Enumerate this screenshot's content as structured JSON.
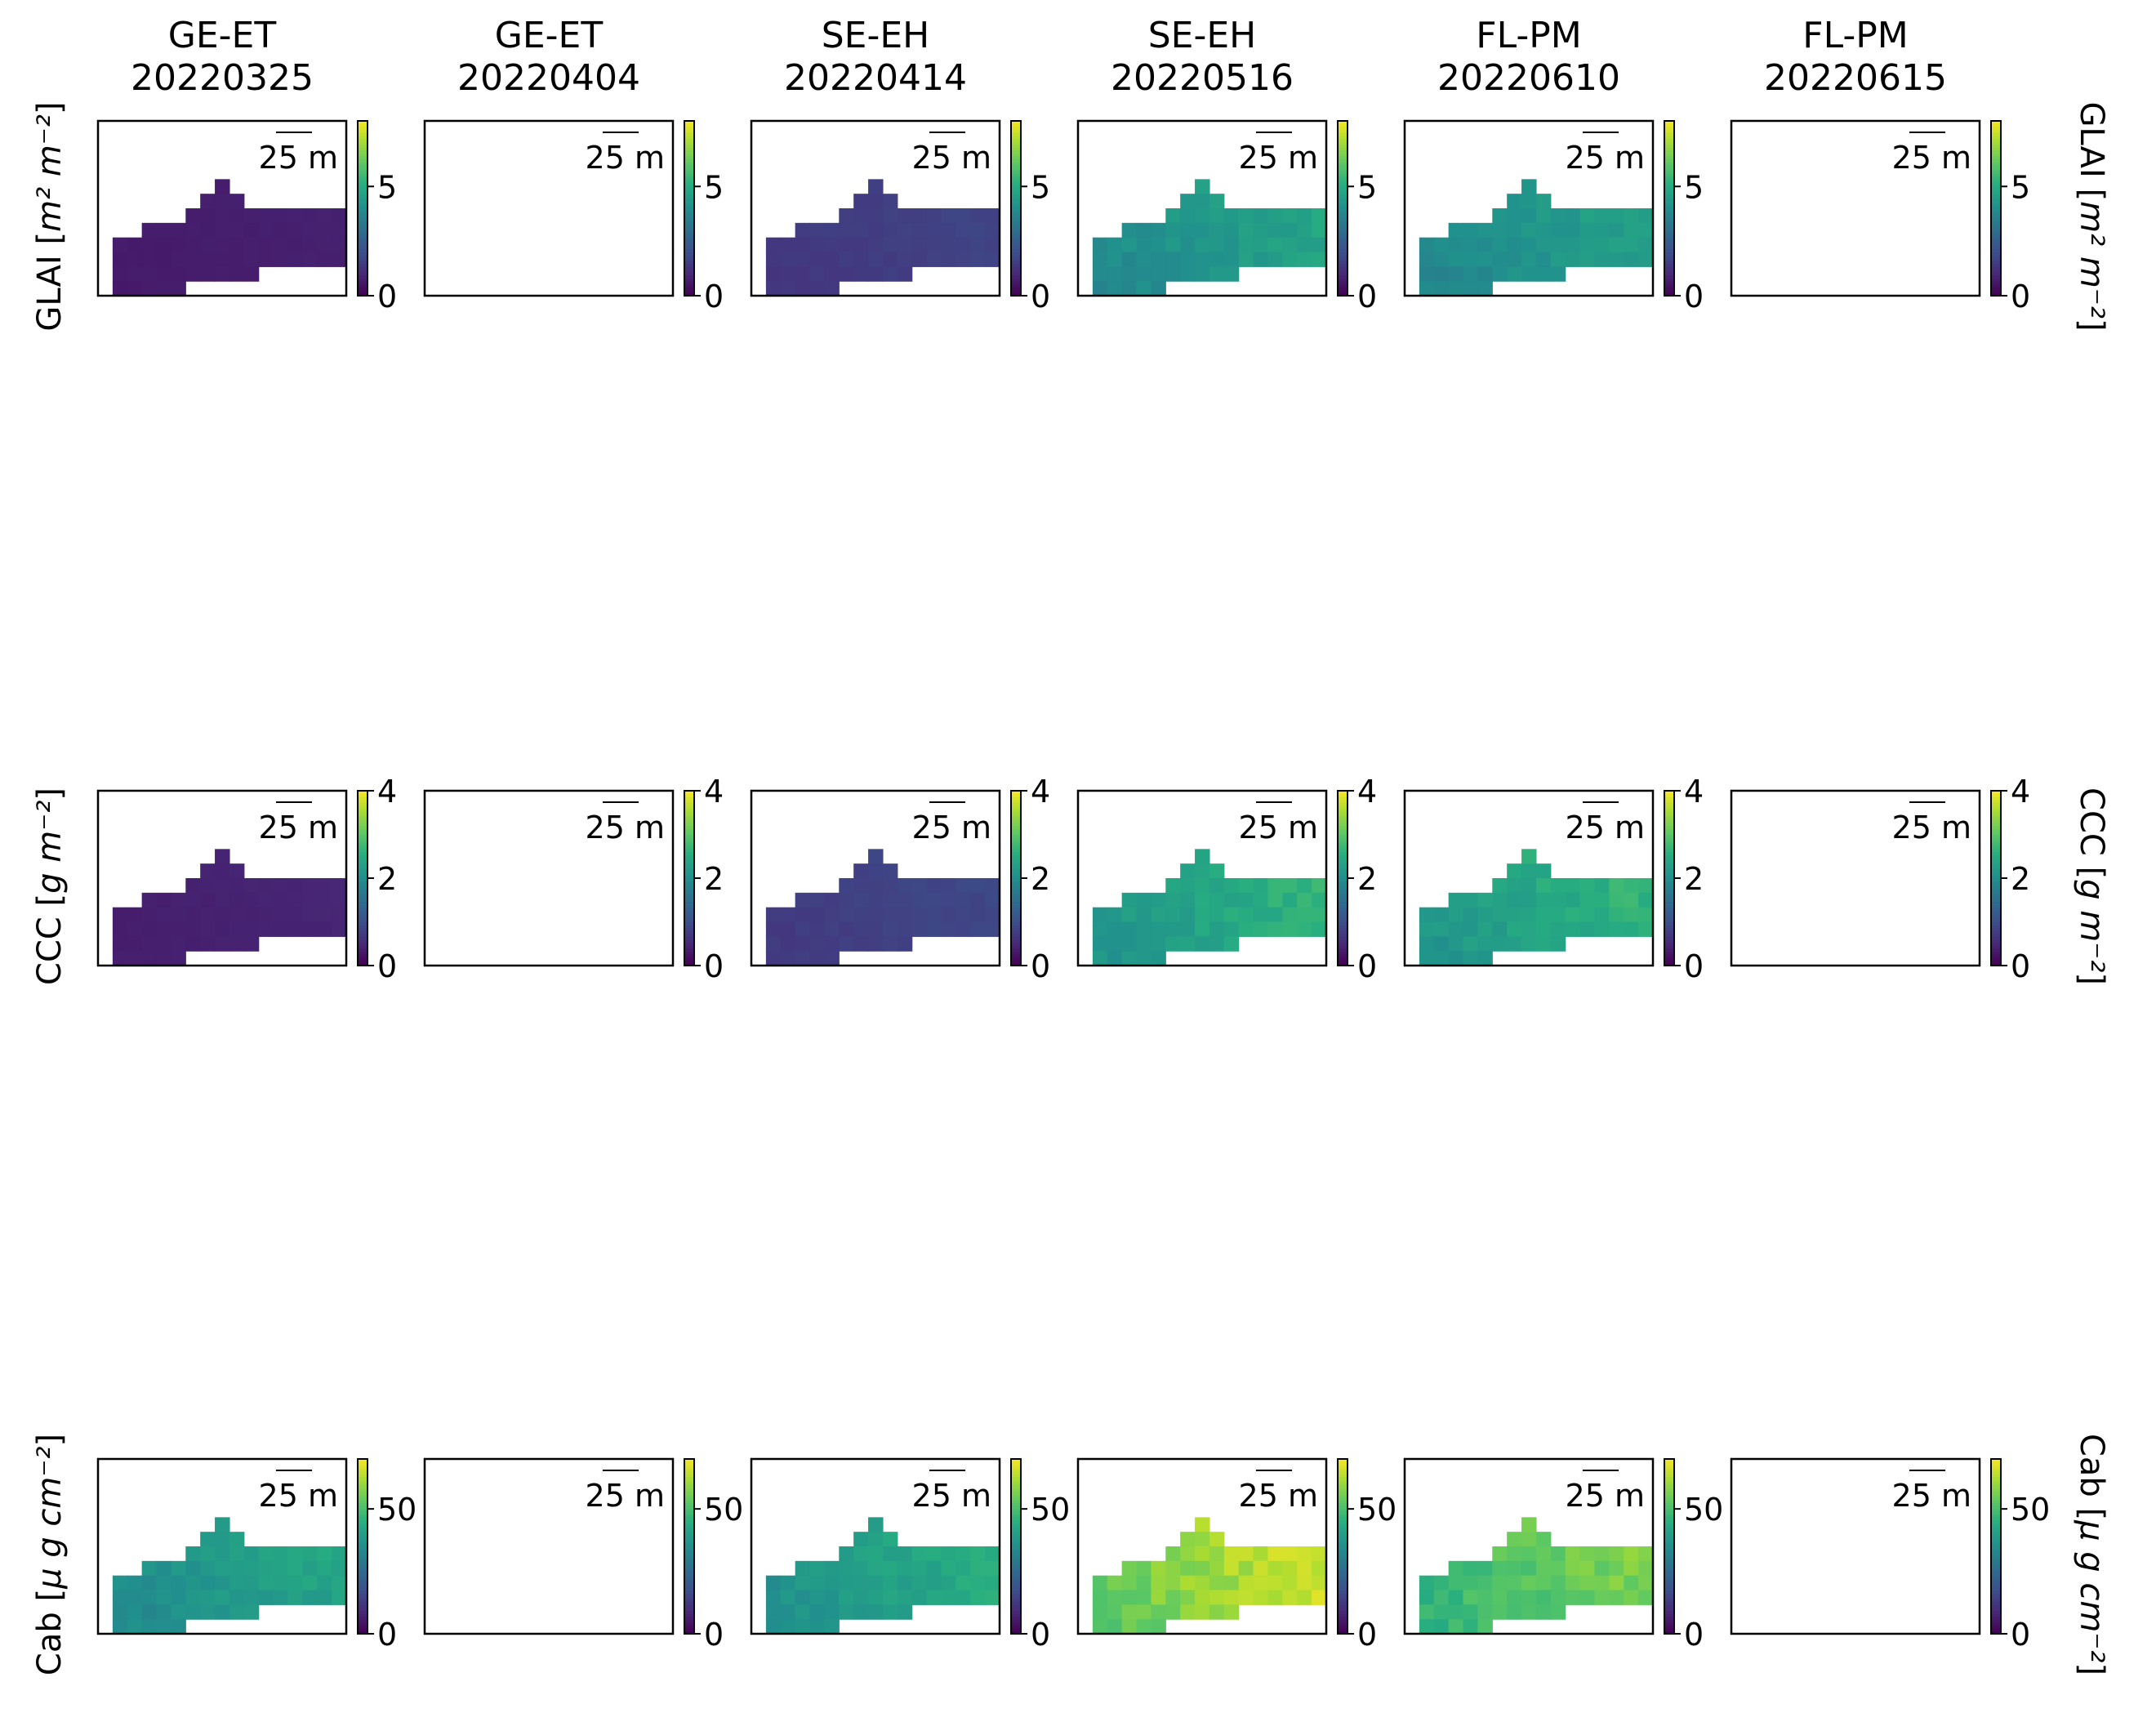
{
  "chart_data": {
    "type": "heatmap",
    "colormap": "viridis",
    "columns": [
      {
        "site": "GE-ET",
        "date": "20220325"
      },
      {
        "site": "GE-ET",
        "date": "20220404"
      },
      {
        "site": "SE-EH",
        "date": "20220414"
      },
      {
        "site": "SE-EH",
        "date": "20220516"
      },
      {
        "site": "FL-PM",
        "date": "20220610"
      },
      {
        "site": "FL-PM",
        "date": "20220615"
      }
    ],
    "scale_bar_label": "25 m",
    "rows": [
      {
        "variable": "GLAI",
        "label_main": "GLAI [",
        "label_unit": "m² m⁻²",
        "label_close": "]",
        "vmin": 0,
        "vmax": 8,
        "ticks": [
          0,
          5
        ],
        "panel_values": [
          0.7,
          null,
          1.5,
          4.3,
          4.2,
          null
        ]
      },
      {
        "variable": "CCC",
        "label_main": "CCC [",
        "label_unit": "g m⁻²",
        "label_close": "]",
        "vmin": 0,
        "vmax": 4,
        "ticks": [
          0,
          2,
          4
        ],
        "panel_values": [
          0.4,
          null,
          0.8,
          2.4,
          2.4,
          null
        ]
      },
      {
        "variable": "Cab",
        "label_main": "Cab [",
        "label_unit": "µ g cm⁻²",
        "label_close": "]",
        "vmin": 0,
        "vmax": 70,
        "ticks": [
          0,
          50
        ],
        "panel_values": [
          38,
          null,
          40,
          60,
          52,
          null
        ]
      }
    ]
  }
}
